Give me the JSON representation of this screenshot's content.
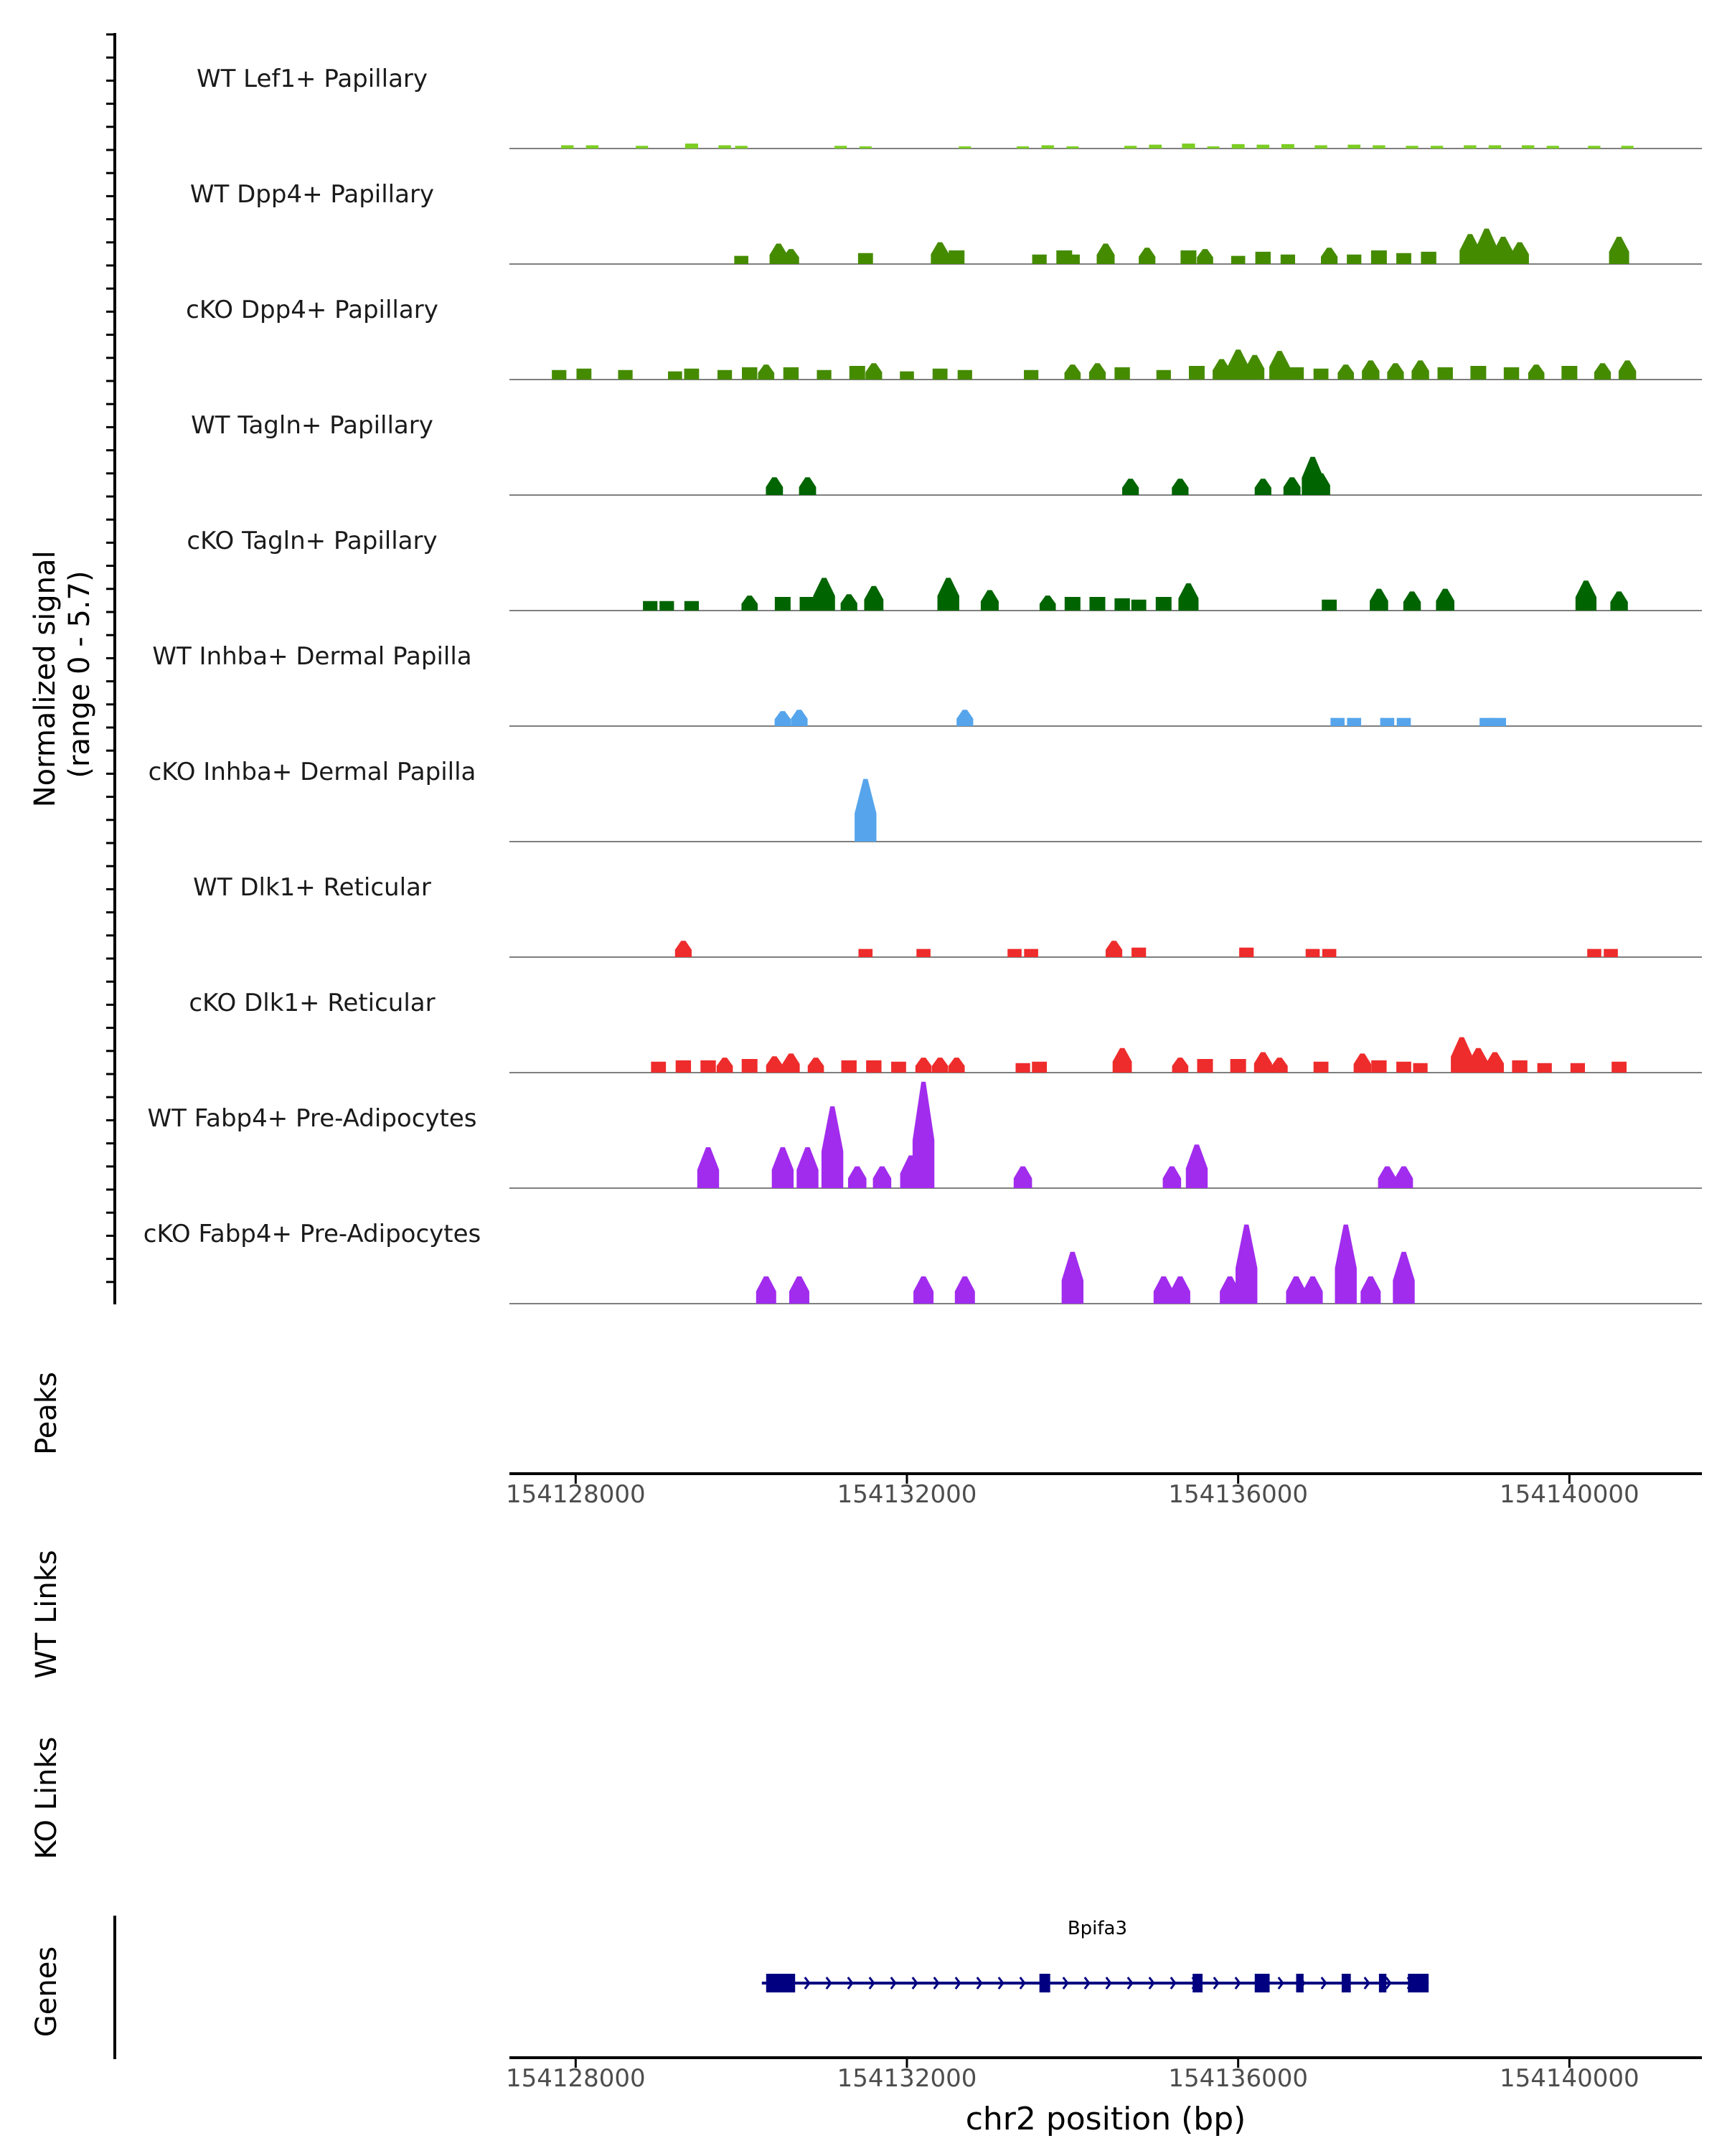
{
  "chart_data": {
    "type": "area",
    "title": "",
    "region": {
      "chrom": "chr2",
      "start": 154127200,
      "end": 154141600
    },
    "signal_track": {
      "ylabel_line1": "Normalized signal",
      "ylabel_line2": "(range 0 - 5.7)",
      "ylim": [
        0,
        5.7
      ],
      "series": [
        {
          "name": "WT Lef1+ Papillary",
          "color": "#7CCD23",
          "peaks": [
            [
              154127900,
              0.12
            ],
            [
              154128200,
              0.12
            ],
            [
              154128800,
              0.1
            ],
            [
              154129400,
              0.18
            ],
            [
              154129800,
              0.12
            ],
            [
              154130000,
              0.1
            ],
            [
              154131200,
              0.1
            ],
            [
              154131500,
              0.08
            ],
            [
              154132700,
              0.08
            ],
            [
              154133400,
              0.08
            ],
            [
              154133700,
              0.12
            ],
            [
              154134000,
              0.08
            ],
            [
              154134700,
              0.1
            ],
            [
              154135000,
              0.14
            ],
            [
              154135400,
              0.18
            ],
            [
              154135700,
              0.08
            ],
            [
              154136000,
              0.16
            ],
            [
              154136300,
              0.14
            ],
            [
              154136600,
              0.16
            ],
            [
              154137000,
              0.12
            ],
            [
              154137400,
              0.14
            ],
            [
              154137700,
              0.12
            ],
            [
              154138100,
              0.1
            ],
            [
              154138400,
              0.1
            ],
            [
              154138800,
              0.12
            ],
            [
              154139100,
              0.12
            ],
            [
              154139500,
              0.12
            ],
            [
              154139800,
              0.1
            ],
            [
              154140300,
              0.1
            ],
            [
              154140700,
              0.1
            ]
          ]
        },
        {
          "name": "WT Dpp4+ Papillary",
          "color": "#458B00",
          "peaks": [
            [
              154130000,
              0.3
            ],
            [
              154130450,
              0.75
            ],
            [
              154130600,
              0.55
            ],
            [
              154131500,
              0.4
            ],
            [
              154132400,
              0.8
            ],
            [
              154132600,
              0.5
            ],
            [
              154133600,
              0.35
            ],
            [
              154133900,
              0.5
            ],
            [
              154134000,
              0.35
            ],
            [
              154134400,
              0.75
            ],
            [
              154134900,
              0.6
            ],
            [
              154135400,
              0.5
            ],
            [
              154135600,
              0.55
            ],
            [
              154136000,
              0.3
            ],
            [
              154136300,
              0.45
            ],
            [
              154136600,
              0.35
            ],
            [
              154137100,
              0.6
            ],
            [
              154137400,
              0.35
            ],
            [
              154137700,
              0.5
            ],
            [
              154138000,
              0.4
            ],
            [
              154138300,
              0.45
            ],
            [
              154138800,
              1.1
            ],
            [
              154139000,
              1.3
            ],
            [
              154139200,
              1.0
            ],
            [
              154139400,
              0.8
            ],
            [
              154140600,
              1.0
            ]
          ]
        },
        {
          "name": "cKO Dpp4+ Papillary",
          "color": "#458B00",
          "peaks": [
            [
              154127800,
              0.35
            ],
            [
              154128100,
              0.4
            ],
            [
              154128600,
              0.35
            ],
            [
              154129200,
              0.3
            ],
            [
              154129400,
              0.4
            ],
            [
              154129800,
              0.35
            ],
            [
              154130100,
              0.45
            ],
            [
              154130300,
              0.55
            ],
            [
              154130600,
              0.45
            ],
            [
              154131000,
              0.35
            ],
            [
              154131400,
              0.5
            ],
            [
              154131600,
              0.6
            ],
            [
              154132000,
              0.3
            ],
            [
              154132400,
              0.4
            ],
            [
              154132700,
              0.35
            ],
            [
              154133500,
              0.35
            ],
            [
              154134000,
              0.55
            ],
            [
              154134300,
              0.6
            ],
            [
              154134600,
              0.45
            ],
            [
              154135100,
              0.35
            ],
            [
              154135500,
              0.5
            ],
            [
              154135800,
              0.75
            ],
            [
              154136000,
              1.1
            ],
            [
              154136200,
              0.9
            ],
            [
              154136500,
              1.05
            ],
            [
              154136700,
              0.45
            ],
            [
              154137000,
              0.4
            ],
            [
              154137300,
              0.55
            ],
            [
              154137600,
              0.7
            ],
            [
              154137900,
              0.6
            ],
            [
              154138200,
              0.7
            ],
            [
              154138500,
              0.45
            ],
            [
              154138900,
              0.5
            ],
            [
              154139300,
              0.45
            ],
            [
              154139600,
              0.55
            ],
            [
              154140000,
              0.5
            ],
            [
              154140400,
              0.6
            ],
            [
              154140700,
              0.7
            ]
          ]
        },
        {
          "name": "WT Tagln+ Papillary",
          "color": "#006400",
          "peaks": [
            [
              154130400,
              0.65
            ],
            [
              154130800,
              0.65
            ],
            [
              154134700,
              0.6
            ],
            [
              154135300,
              0.6
            ],
            [
              154136300,
              0.6
            ],
            [
              154136650,
              0.65
            ],
            [
              154136900,
              1.4
            ],
            [
              154137000,
              0.8
            ]
          ]
        },
        {
          "name": "cKO Tagln+ Papillary",
          "color": "#006400",
          "peaks": [
            [
              154128900,
              0.35
            ],
            [
              154129100,
              0.35
            ],
            [
              154129400,
              0.35
            ],
            [
              154130100,
              0.55
            ],
            [
              154130500,
              0.5
            ],
            [
              154130800,
              0.5
            ],
            [
              154131000,
              1.2
            ],
            [
              154131300,
              0.6
            ],
            [
              154131600,
              0.9
            ],
            [
              154132500,
              1.2
            ],
            [
              154133000,
              0.75
            ],
            [
              154133700,
              0.55
            ],
            [
              154134000,
              0.5
            ],
            [
              154134300,
              0.5
            ],
            [
              154134600,
              0.45
            ],
            [
              154134800,
              0.4
            ],
            [
              154135100,
              0.5
            ],
            [
              154135400,
              1.0
            ],
            [
              154137100,
              0.4
            ],
            [
              154137700,
              0.8
            ],
            [
              154138100,
              0.7
            ],
            [
              154138500,
              0.8
            ],
            [
              154140200,
              1.1
            ],
            [
              154140600,
              0.7
            ]
          ]
        },
        {
          "name": "WT Inhba+ Dermal Papilla",
          "color": "#56A5EC",
          "peaks": [
            [
              154130500,
              0.55
            ],
            [
              154130700,
              0.6
            ],
            [
              154132700,
              0.6
            ],
            [
              154137200,
              0.3
            ],
            [
              154137400,
              0.3
            ],
            [
              154137800,
              0.3
            ],
            [
              154138000,
              0.3
            ],
            [
              154139000,
              0.3
            ],
            [
              154139150,
              0.3
            ]
          ]
        },
        {
          "name": "cKO Inhba+ Dermal Papilla",
          "color": "#56A5EC",
          "peaks": [
            [
              154131500,
              2.3
            ]
          ]
        },
        {
          "name": "WT Dlk1+ Reticular",
          "color": "#EE2C2C",
          "peaks": [
            [
              154129300,
              0.6
            ],
            [
              154131500,
              0.3
            ],
            [
              154132200,
              0.3
            ],
            [
              154133300,
              0.3
            ],
            [
              154133500,
              0.3
            ],
            [
              154134500,
              0.6
            ],
            [
              154134800,
              0.35
            ],
            [
              154136100,
              0.35
            ],
            [
              154136900,
              0.3
            ],
            [
              154137100,
              0.3
            ],
            [
              154140300,
              0.3
            ],
            [
              154140500,
              0.3
            ]
          ]
        },
        {
          "name": "cKO Dlk1+ Reticular",
          "color": "#EE2C2C",
          "peaks": [
            [
              154129000,
              0.4
            ],
            [
              154129300,
              0.45
            ],
            [
              154129600,
              0.45
            ],
            [
              154129800,
              0.55
            ],
            [
              154130100,
              0.5
            ],
            [
              154130400,
              0.6
            ],
            [
              154130600,
              0.7
            ],
            [
              154130900,
              0.55
            ],
            [
              154131300,
              0.45
            ],
            [
              154131600,
              0.45
            ],
            [
              154131900,
              0.4
            ],
            [
              154132200,
              0.55
            ],
            [
              154132400,
              0.55
            ],
            [
              154132600,
              0.55
            ],
            [
              154133400,
              0.35
            ],
            [
              154133600,
              0.4
            ],
            [
              154134600,
              0.9
            ],
            [
              154135300,
              0.55
            ],
            [
              154135600,
              0.5
            ],
            [
              154136000,
              0.5
            ],
            [
              154136300,
              0.75
            ],
            [
              154136500,
              0.55
            ],
            [
              154137000,
              0.4
            ],
            [
              154137500,
              0.7
            ],
            [
              154137700,
              0.45
            ],
            [
              154138000,
              0.4
            ],
            [
              154138200,
              0.35
            ],
            [
              154138700,
              1.3
            ],
            [
              154138900,
              0.9
            ],
            [
              154139100,
              0.75
            ],
            [
              154139400,
              0.45
            ],
            [
              154139700,
              0.35
            ],
            [
              154140100,
              0.35
            ],
            [
              154140600,
              0.4
            ]
          ]
        },
        {
          "name": "WT Fabp4+ Pre-Adipocytes",
          "color": "#A12CEE",
          "peaks": [
            [
              154129600,
              1.5
            ],
            [
              154130500,
              1.5
            ],
            [
              154130800,
              1.5
            ],
            [
              154131100,
              3.0
            ],
            [
              154131400,
              0.8
            ],
            [
              154131700,
              0.8
            ],
            [
              154132200,
              3.9
            ],
            [
              154132050,
              1.2
            ],
            [
              154133400,
              0.8
            ],
            [
              154135200,
              0.8
            ],
            [
              154135500,
              1.6
            ],
            [
              154137800,
              0.8
            ],
            [
              154138000,
              0.8
            ]
          ]
        },
        {
          "name": "cKO Fabp4+ Pre-Adipocytes",
          "color": "#A12CEE",
          "peaks": [
            [
              154130300,
              1.0
            ],
            [
              154130700,
              1.0
            ],
            [
              154132200,
              1.0
            ],
            [
              154132700,
              1.0
            ],
            [
              154134000,
              1.9
            ],
            [
              154135100,
              1.0
            ],
            [
              154135300,
              1.0
            ],
            [
              154135900,
              1.0
            ],
            [
              154136100,
              2.9
            ],
            [
              154136700,
              1.0
            ],
            [
              154136900,
              1.0
            ],
            [
              154137300,
              2.9
            ],
            [
              154137600,
              1.0
            ],
            [
              154138000,
              1.9
            ]
          ]
        }
      ]
    },
    "peaks_track": {
      "label": "Peaks",
      "items": []
    },
    "links_tracks": [
      {
        "label": "WT Links",
        "items": []
      },
      {
        "label": "KO Links",
        "items": []
      }
    ],
    "genes_track": {
      "label": "Genes",
      "genes": [
        {
          "name": "Bpifa3",
          "start": 154130300,
          "end": 154138300,
          "strand": "+",
          "exons": [
            [
              154130300,
              154130650
            ],
            [
              154133600,
              154133730
            ],
            [
              154135450,
              154135570
            ],
            [
              154136200,
              154136380
            ],
            [
              154136700,
              154136790
            ],
            [
              154137250,
              154137360
            ],
            [
              154137700,
              154137790
            ],
            [
              154138050,
              154138300
            ]
          ]
        }
      ]
    },
    "x_axis": {
      "xlabel": "chr2 position (bp)",
      "ticks": [
        154128000,
        154132000,
        154136000,
        154140000
      ],
      "tick_labels": [
        "154128000",
        "154132000",
        "154136000",
        "154140000"
      ]
    }
  }
}
